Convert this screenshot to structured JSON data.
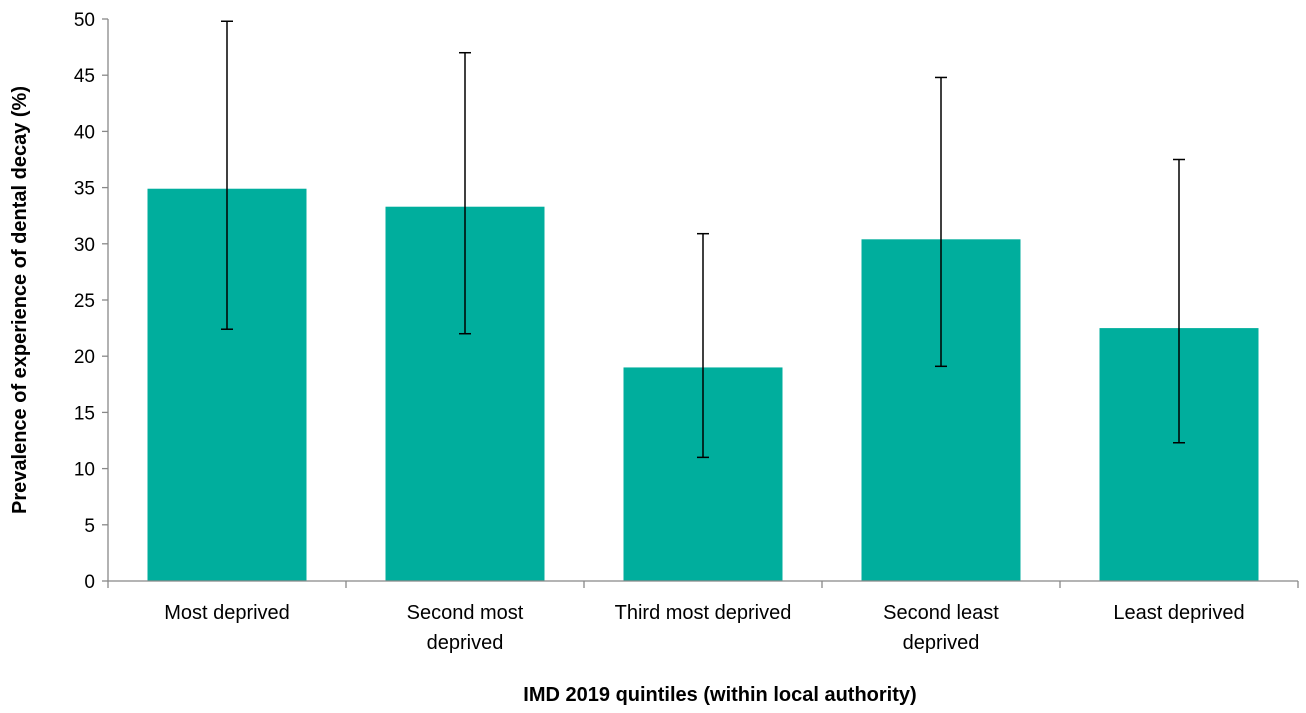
{
  "chart_data": {
    "type": "bar",
    "categories": [
      [
        "Most deprived"
      ],
      [
        "Second most",
        "deprived"
      ],
      [
        "Third most deprived"
      ],
      [
        "Second least",
        "deprived"
      ],
      [
        "Least deprived"
      ]
    ],
    "values": [
      34.9,
      33.3,
      19.0,
      30.4,
      22.5
    ],
    "error_low": [
      22.4,
      22.0,
      11.0,
      19.1,
      12.3
    ],
    "error_high": [
      49.8,
      47.0,
      30.9,
      44.8,
      37.5
    ],
    "xlabel": "IMD 2019 quintiles (within local authority)",
    "ylabel": "Prevalence of experience of dental decay (%)",
    "ylim": [
      0,
      50
    ],
    "yticks": [
      0,
      5,
      10,
      15,
      20,
      25,
      30,
      35,
      40,
      45,
      50
    ],
    "grid": false,
    "legend": "none",
    "bar_color": "#00AE9D",
    "error_bar_color": "#000000"
  }
}
